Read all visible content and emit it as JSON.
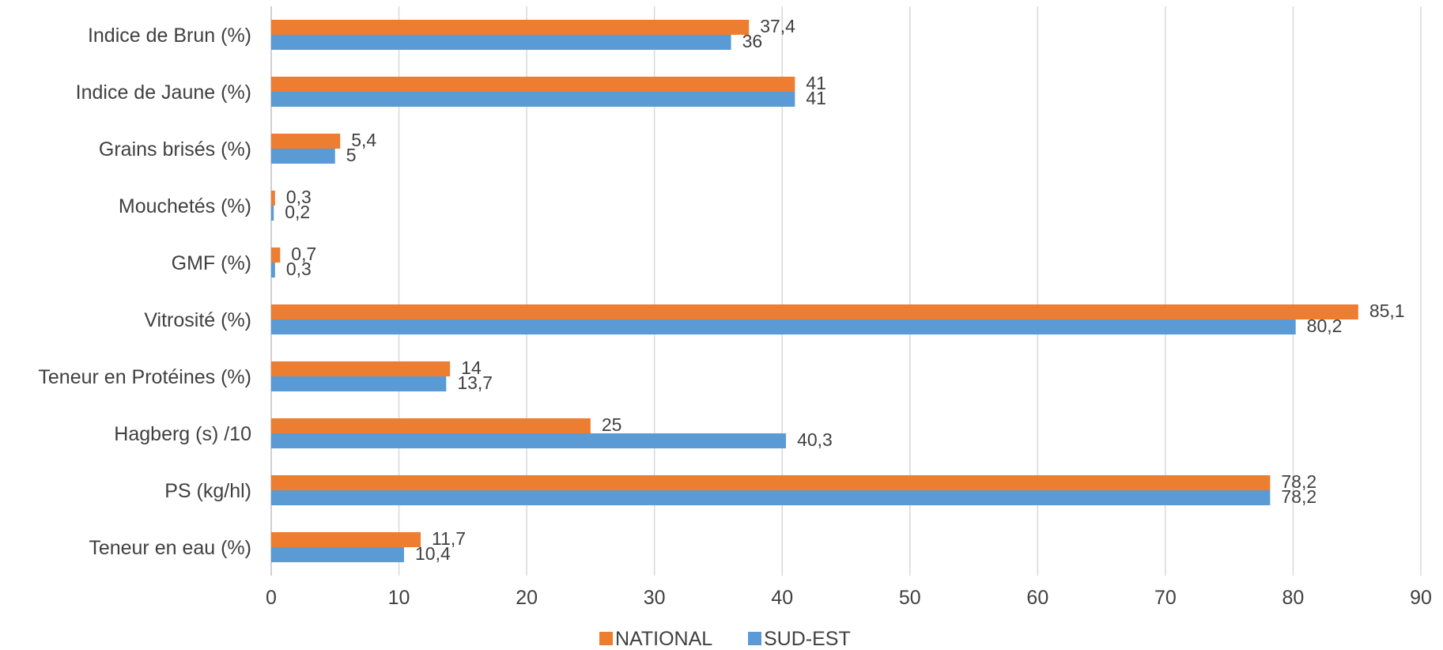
{
  "chart_data": {
    "type": "bar",
    "orientation": "horizontal",
    "categories": [
      "Indice de Brun (%)",
      "Indice de Jaune (%)",
      "Grains brisés (%)",
      "Mouchetés (%)",
      "GMF (%)",
      "Vitrosité (%)",
      "Teneur en Protéines (%)",
      "Hagberg (s) /10",
      "PS (kg/hl)",
      "Teneur en eau (%)"
    ],
    "series": [
      {
        "name": "NATIONAL",
        "color": "#ed7d31",
        "values": [
          37.4,
          41,
          5.4,
          0.3,
          0.7,
          85.1,
          14,
          25,
          78.2,
          11.7
        ],
        "labels": [
          "37,4",
          "41",
          "5,4",
          "0,3",
          "0,7",
          "85,1",
          "14",
          "25",
          "78,2",
          "11,7"
        ]
      },
      {
        "name": "SUD-EST",
        "color": "#5b9bd5",
        "values": [
          36,
          41,
          5,
          0.2,
          0.3,
          80.2,
          13.7,
          40.3,
          78.2,
          10.4
        ],
        "labels": [
          "36",
          "41",
          "5",
          "0,2",
          "0,3",
          "80,2",
          "13,7",
          "40,3",
          "78,2",
          "10,4"
        ]
      }
    ],
    "xlim": [
      0,
      90
    ],
    "xticks": [
      0,
      10,
      20,
      30,
      40,
      50,
      60,
      70,
      80,
      90
    ],
    "title": "",
    "xlabel": "",
    "ylabel": "",
    "grid": true,
    "legend": "bottom"
  }
}
